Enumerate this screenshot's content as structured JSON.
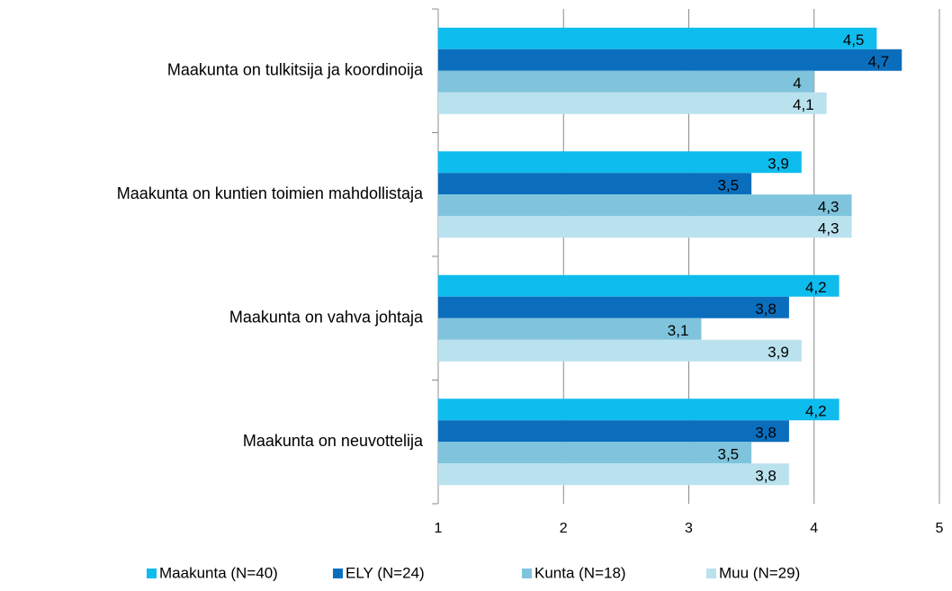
{
  "chart_data": {
    "type": "barh",
    "categories": [
      "Maakunta on tulkitsija ja koordinoija",
      "Maakunta on kuntien toimien mahdollistaja",
      "Maakunta on vahva johtaja",
      "Maakunta on neuvottelija"
    ],
    "series": [
      {
        "name": "Maakunta (N=40)",
        "color": "#0fbcee",
        "values": [
          4.5,
          3.9,
          4.2,
          4.2
        ],
        "value_labels": [
          "4,5",
          "3,9",
          "4,2",
          "4,2"
        ]
      },
      {
        "name": "ELY (N=24)",
        "color": "#0a6ebd",
        "values": [
          4.7,
          3.5,
          3.8,
          3.8
        ],
        "value_labels": [
          "4,7",
          "3,5",
          "3,8",
          "3,8"
        ]
      },
      {
        "name": "Kunta (N=18)",
        "color": "#7fc4dc",
        "values": [
          4,
          4.3,
          3.1,
          3.5
        ],
        "value_labels": [
          "4",
          "4,3",
          "3,1",
          "3,5"
        ]
      },
      {
        "name": "Muu (N=29)",
        "color": "#b9e2ee",
        "values": [
          4.1,
          4.3,
          3.9,
          3.8
        ],
        "value_labels": [
          "4,1",
          "4,3",
          "3,9",
          "3,8"
        ]
      }
    ],
    "xlim": [
      1,
      5
    ],
    "xticks": [
      1,
      2,
      3,
      4,
      5
    ],
    "grid": true,
    "legend": "bottom"
  }
}
